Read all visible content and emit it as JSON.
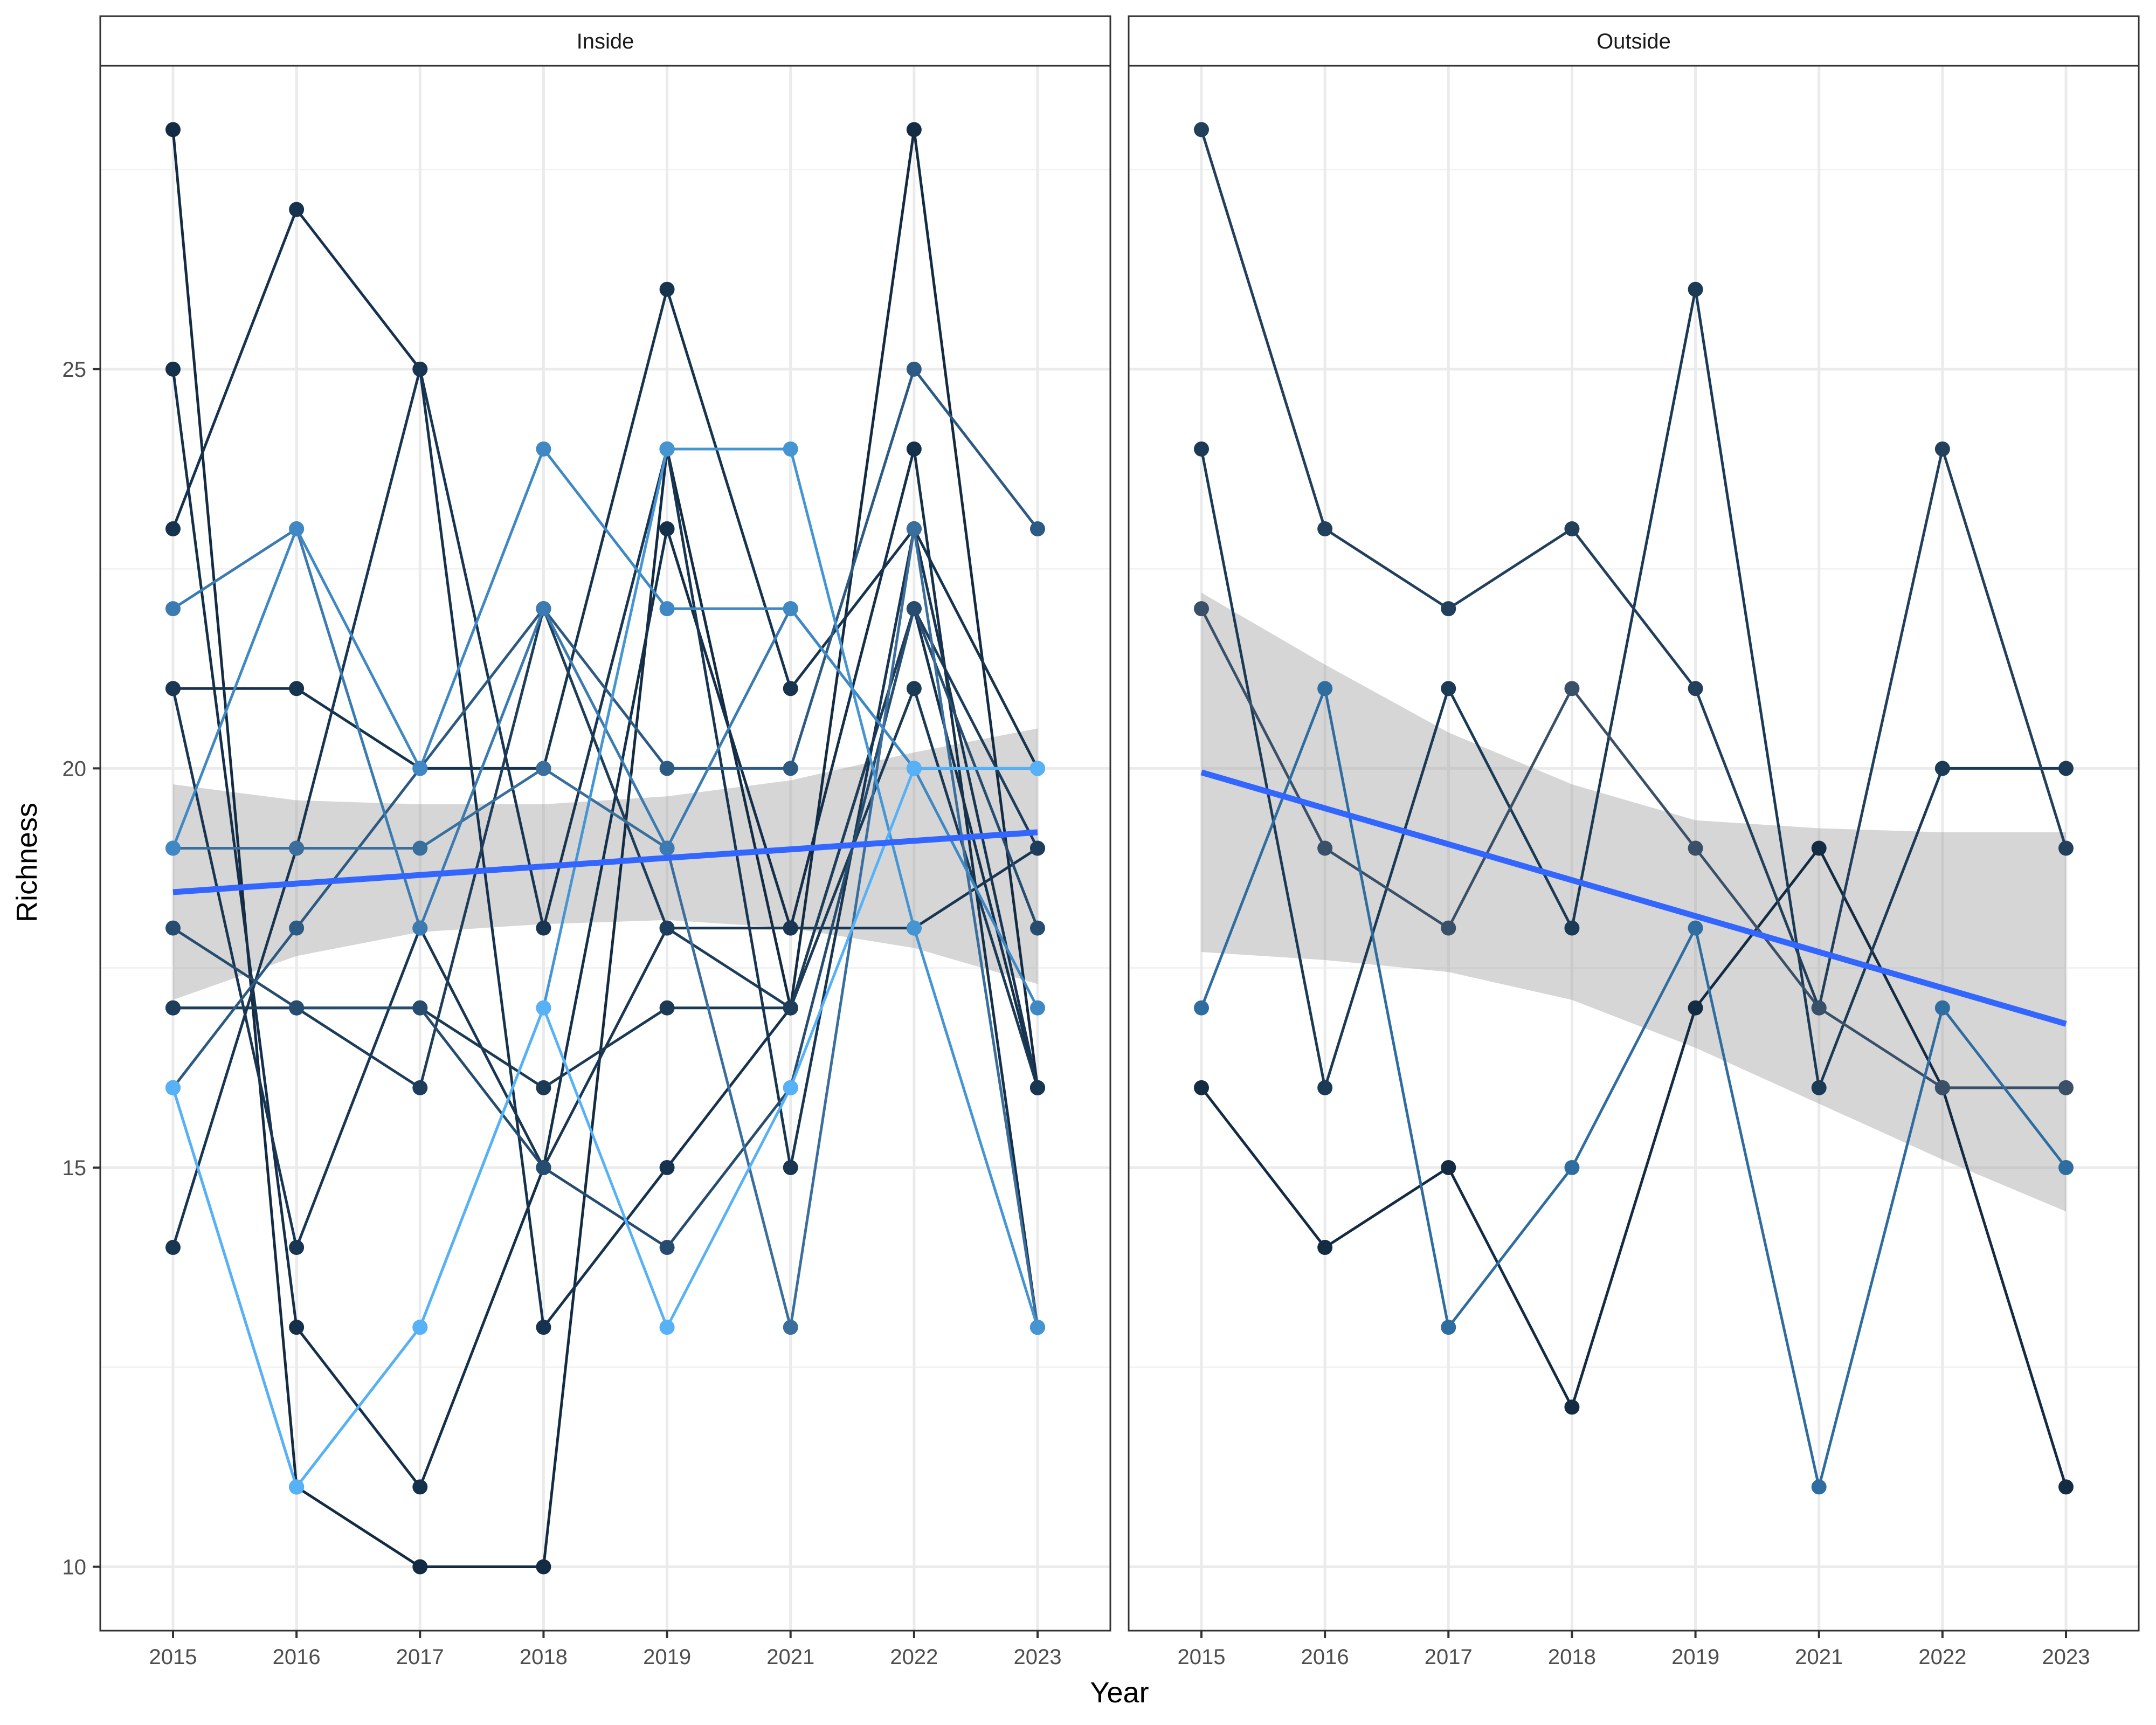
{
  "chart_data": {
    "type": "line",
    "xlabel": "Year",
    "ylabel": "Richness",
    "x_categories": [
      "2015",
      "2016",
      "2017",
      "2018",
      "2019",
      "2021",
      "2022",
      "2023"
    ],
    "ylim": [
      9.2,
      28.8
    ],
    "y_ticks": [
      10,
      15,
      20,
      25
    ],
    "grid": true,
    "panels": [
      {
        "strip": "Inside",
        "series": [
          {
            "color": "#132b43",
            "values": [
              28,
              11,
              10,
              10,
              24,
              17,
              28,
              16
            ]
          },
          {
            "color": "#14304a",
            "values": [
              25,
              13,
              11,
              15,
              23,
              18,
              24,
              13
            ]
          },
          {
            "color": "#16324e",
            "values": [
              23,
              27,
              25,
              13,
              15,
              17,
              22,
              16
            ]
          },
          {
            "color": "#17344f",
            "values": [
              21,
              21,
              20,
              20,
              26,
              21,
              23,
              20
            ]
          },
          {
            "color": "#193652",
            "values": [
              21,
              14,
              18,
              15,
              18,
              18,
              18,
              19
            ]
          },
          {
            "color": "#1b3a56",
            "values": [
              17,
              17,
              17,
              16,
              17,
              17,
              21,
              16
            ]
          },
          {
            "color": "#1d3d5b",
            "values": [
              17,
              17,
              16,
              22,
              18,
              17,
              22,
              19
            ]
          },
          {
            "color": "#183552",
            "values": [
              14,
              19,
              25,
              18,
              24,
              15,
              23,
              16
            ]
          },
          {
            "color": "#264d70",
            "values": [
              18,
              17,
              17,
              15,
              14,
              16,
              22,
              18
            ]
          },
          {
            "color": "#2c5a82",
            "values": [
              16,
              18,
              20,
              22,
              20,
              20,
              25,
              23
            ]
          },
          {
            "color": "#3a6e9c",
            "values": [
              19,
              19,
              19,
              20,
              19,
              13,
              23,
              13
            ]
          },
          {
            "color": "#3b7bb2",
            "values": [
              22,
              23,
              18,
              22,
              19,
              22,
              20,
              20
            ]
          },
          {
            "color": "#3f88c4",
            "values": [
              19,
              23,
              20,
              24,
              22,
              22,
              20,
              17
            ]
          },
          {
            "color": "#4595d3",
            "values": [
              16,
              11,
              13,
              17,
              24,
              24,
              18,
              13
            ]
          },
          {
            "color": "#56b1f7",
            "values": [
              16,
              11,
              13,
              17,
              13,
              16,
              20,
              20
            ]
          }
        ],
        "trend": {
          "start": 18.45,
          "end": 19.2,
          "ci_lower": [
            17.1,
            17.65,
            17.95,
            18.05,
            18.1,
            18.0,
            17.75,
            17.3
          ],
          "ci_upper": [
            19.8,
            19.6,
            19.55,
            19.55,
            19.65,
            19.85,
            20.2,
            20.5
          ]
        }
      },
      {
        "strip": "Outside",
        "series": [
          {
            "color": "#132b43",
            "values": [
              16,
              14,
              15,
              12,
              17,
              19,
              16,
              11
            ]
          },
          {
            "color": "#1b3a56",
            "values": [
              24,
              16,
              21,
              18,
              26,
              16,
              20,
              20
            ]
          },
          {
            "color": "#223f5c",
            "values": [
              28,
              23,
              22,
              23,
              21,
              17,
              24,
              19
            ]
          },
          {
            "color": "#3a5068",
            "values": [
              22,
              19,
              18,
              21,
              19,
              17,
              16,
              16
            ]
          },
          {
            "color": "#2f6da0",
            "values": [
              17,
              21,
              13,
              15,
              18,
              11,
              17,
              15
            ]
          }
        ],
        "trend": {
          "start": 19.95,
          "end": 16.8,
          "ci_lower": [
            17.7,
            17.6,
            17.45,
            17.1,
            16.5,
            15.8,
            15.1,
            14.45
          ],
          "ci_upper": [
            22.2,
            21.3,
            20.45,
            19.8,
            19.35,
            19.25,
            19.2,
            19.2
          ]
        }
      }
    ]
  }
}
